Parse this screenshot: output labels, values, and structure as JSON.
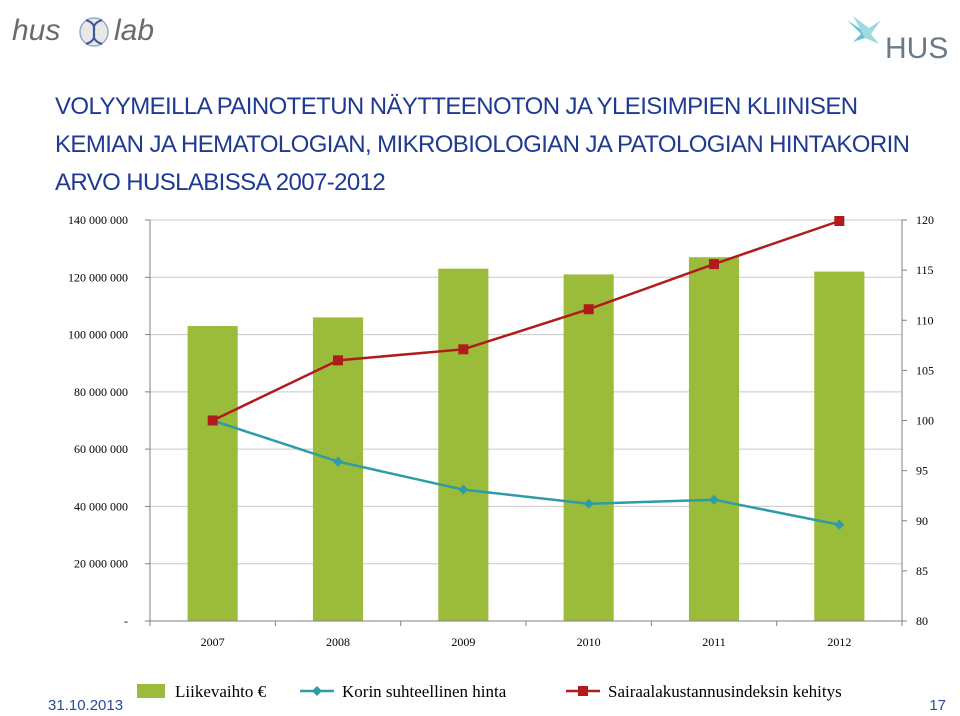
{
  "header": {
    "left_logo": {
      "name": "huslab-logo",
      "text_left": "hus",
      "text_right": "lab"
    },
    "right_logo": {
      "name": "hus-logo",
      "text": "HUS"
    }
  },
  "title": "VOLYYMEILLA PAINOTETUN NÄYTTEENOTON JA YLEISIMPIEN KLIINISEN KEMIAN JA HEMATOLOGIAN, MIKROBIOLOGIAN JA PATOLOGIAN HINTAKORIN ARVO HUSLABISSA 2007-2012",
  "footer": {
    "date": "31.10.2013",
    "page": "17"
  },
  "colors": {
    "title": "#1f3a93",
    "bar": "#9bbb3b",
    "line1": "#2e9ca6",
    "line2": "#b01c1c",
    "footer": "#2a4a9a"
  },
  "chart_data": {
    "type": "bar+line",
    "categories": [
      "2007",
      "2008",
      "2009",
      "2010",
      "2011",
      "2012"
    ],
    "left_axis": {
      "min": 0,
      "max": 140000000,
      "ticks": [
        {
          "value": 0,
          "label": "-"
        },
        {
          "value": 20000000,
          "label": "20 000 000"
        },
        {
          "value": 40000000,
          "label": "40 000 000"
        },
        {
          "value": 60000000,
          "label": "60 000 000"
        },
        {
          "value": 80000000,
          "label": "80 000 000"
        },
        {
          "value": 100000000,
          "label": "100 000 000"
        },
        {
          "value": 120000000,
          "label": "120 000 000"
        },
        {
          "value": 140000000,
          "label": "140 000 000"
        }
      ]
    },
    "right_axis": {
      "min": 80,
      "max": 120,
      "ticks": [
        {
          "value": 80,
          "label": "80"
        },
        {
          "value": 85,
          "label": "85"
        },
        {
          "value": 90,
          "label": "90"
        },
        {
          "value": 95,
          "label": "95"
        },
        {
          "value": 100,
          "label": "100"
        },
        {
          "value": 105,
          "label": "105"
        },
        {
          "value": 110,
          "label": "110"
        },
        {
          "value": 115,
          "label": "115"
        },
        {
          "value": 120,
          "label": "120"
        }
      ]
    },
    "grid": true,
    "legend_position": "bottom",
    "series": [
      {
        "name": "Liikevaihto €",
        "kind": "bar",
        "axis": "left",
        "color": "#9bbb3b",
        "values": [
          103000000,
          106000000,
          123000000,
          121000000,
          127000000,
          122000000
        ]
      },
      {
        "name": "Korin suhteellinen hinta",
        "kind": "line",
        "marker": "diamond",
        "axis": "right",
        "color": "#2e9ca6",
        "values": [
          100,
          95.9,
          93.1,
          91.7,
          92.1,
          89.6
        ]
      },
      {
        "name": "Sairaalakustannusindeksin kehitys",
        "kind": "line",
        "marker": "square",
        "axis": "right",
        "color": "#b01c1c",
        "values": [
          100,
          106,
          107.1,
          111.1,
          115.6,
          119.9
        ]
      }
    ]
  }
}
